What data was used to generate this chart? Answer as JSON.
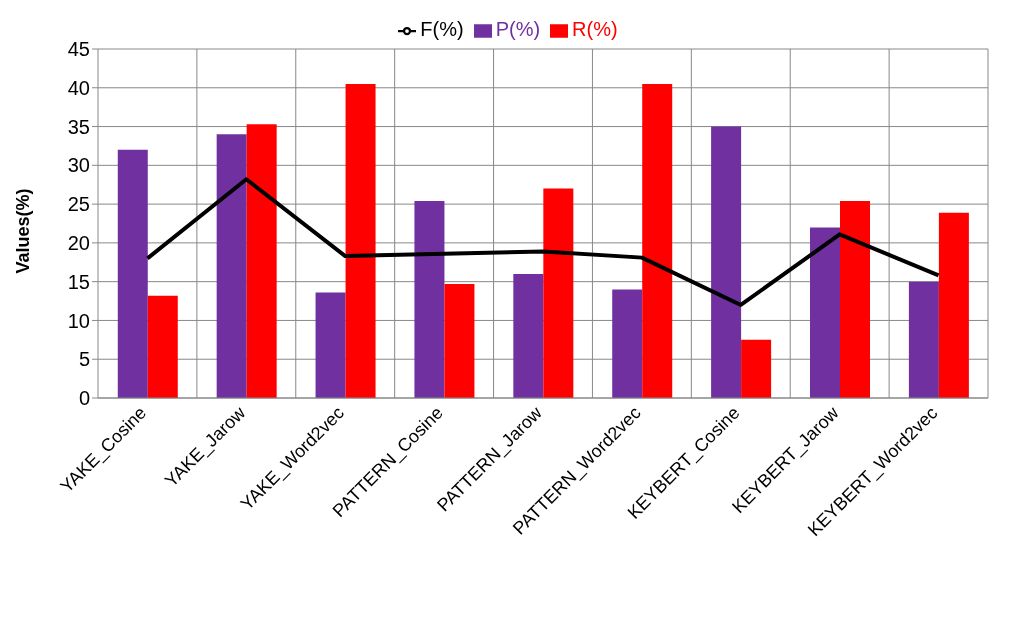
{
  "chart_data": {
    "type": "bar",
    "ylabel": "Values(%)",
    "categories": [
      "YAKE_Cosine",
      "YAKE_Jarow",
      "YAKE_Word2vec",
      "PATTERN_Cosine",
      "PATTERN_Jarow",
      "PATTERN_Word2vec",
      "KEYBERT_Cosine",
      "KEYBERT_Jarow",
      "KEYBERT_Word2vec"
    ],
    "series": [
      {
        "name": "P(%)",
        "color": "#7030a0",
        "values": [
          32,
          34,
          13.6,
          25.4,
          16,
          14,
          35,
          22,
          15
        ]
      },
      {
        "name": "R(%)",
        "color": "#ff0000",
        "values": [
          13.2,
          35.3,
          40.5,
          14.7,
          27,
          40.5,
          7.5,
          25.4,
          23.9
        ]
      },
      {
        "name": "F(%)",
        "type": "line",
        "color": "#000000",
        "values": [
          18,
          28.2,
          18.3,
          18.6,
          18.9,
          18.1,
          12,
          21.1,
          15.8
        ]
      }
    ],
    "ylim": [
      0,
      45
    ],
    "yticks": [
      0,
      5,
      10,
      15,
      20,
      25,
      30,
      35,
      40,
      45
    ],
    "grid": true,
    "legend": "top",
    "marker": "none"
  }
}
